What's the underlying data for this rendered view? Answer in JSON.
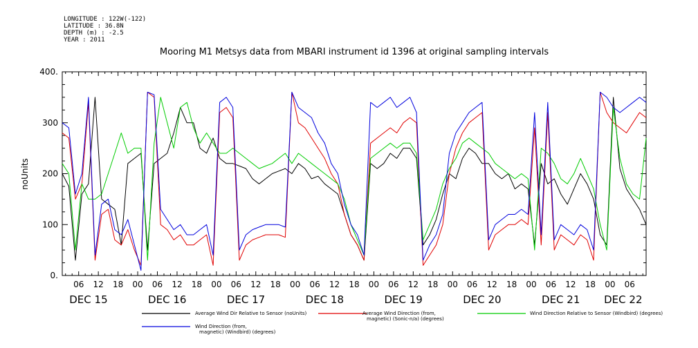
{
  "header": {
    "meta_lines": [
      "LONGITUDE : 122W(-122)",
      "LATITUDE : 36.8N",
      "DEPTH (m) : -2.5",
      "YEAR : 2011"
    ],
    "title": "Mooring M1 Metsys data from MBARI instrument id 1396 at original sampling intervals"
  },
  "chart_data": {
    "type": "line",
    "title": "Mooring M1 Metsys data from MBARI instrument id 1396 at original sampling intervals",
    "ylabel": "noUnits",
    "xlabel": "",
    "ylim": [
      0,
      400
    ],
    "y_ticks": [
      0,
      100,
      200,
      300,
      400
    ],
    "y_tick_labels": [
      "0.",
      "100",
      "200",
      "300",
      "400."
    ],
    "x_unit": "hours since Dec 14 2011 00:00",
    "xlim": [
      105.5,
      194.5
    ],
    "hour_ticks": [
      {
        "x": 108,
        "label": "06"
      },
      {
        "x": 111,
        "label": "12"
      },
      {
        "x": 114,
        "label": "18"
      },
      {
        "x": 117,
        "label": "00"
      },
      {
        "x": 120,
        "label": "06"
      },
      {
        "x": 123,
        "label": "12"
      },
      {
        "x": 126,
        "label": "18"
      },
      {
        "x": 129,
        "label": "00"
      },
      {
        "x": 132,
        "label": "06"
      },
      {
        "x": 135,
        "label": "12"
      },
      {
        "x": 138,
        "label": "18"
      },
      {
        "x": 141,
        "label": "00"
      },
      {
        "x": 144,
        "label": "06"
      },
      {
        "x": 147,
        "label": "12"
      },
      {
        "x": 150,
        "label": "18"
      },
      {
        "x": 153,
        "label": "00"
      },
      {
        "x": 156,
        "label": "06"
      },
      {
        "x": 159,
        "label": "12"
      },
      {
        "x": 162,
        "label": "18"
      },
      {
        "x": 165,
        "label": "00"
      },
      {
        "x": 168,
        "label": "06"
      },
      {
        "x": 171,
        "label": "12"
      },
      {
        "x": 174,
        "label": "18"
      },
      {
        "x": 177,
        "label": "00"
      },
      {
        "x": 180,
        "label": "06"
      },
      {
        "x": 183,
        "label": "12"
      },
      {
        "x": 186,
        "label": "18"
      },
      {
        "x": 189,
        "label": "00"
      },
      {
        "x": 192,
        "label": "06"
      }
    ],
    "day_labels": [
      {
        "x": 109.5,
        "label": "DEC 15"
      },
      {
        "x": 121.5,
        "label": "DEC 16"
      },
      {
        "x": 133.5,
        "label": "DEC 17"
      },
      {
        "x": 145.5,
        "label": "DEC 18"
      },
      {
        "x": 157.5,
        "label": "DEC 19"
      },
      {
        "x": 169.5,
        "label": "DEC 20"
      },
      {
        "x": 181.5,
        "label": "DEC 21"
      },
      {
        "x": 191,
        "label": "DEC 22"
      }
    ],
    "series": [
      {
        "name": "Average Wind Dir Relative to Sensor (noUnits)",
        "color": "#000000",
        "x": [
          105.5,
          106.5,
          107.5,
          108.5,
          109.5,
          110.5,
          111.5,
          112.5,
          113.5,
          114.5,
          115.5,
          116.5,
          117.5,
          118.5,
          119.5,
          120.5,
          121.5,
          122.5,
          123.5,
          124.5,
          125.5,
          126.5,
          127.5,
          128.5,
          129.5,
          130.5,
          131.5,
          132.5,
          133.5,
          134.5,
          135.5,
          136.5,
          137.5,
          138.5,
          139.5,
          140.5,
          141.5,
          142.5,
          143.5,
          144.5,
          145.5,
          146.5,
          147.5,
          148.5,
          149.5,
          150.5,
          151.5,
          152.5,
          153.5,
          154.5,
          155.5,
          156.5,
          157.5,
          158.5,
          159.5,
          160.5,
          161.5,
          162.5,
          163.5,
          164.5,
          165.5,
          166.5,
          167.5,
          168.5,
          169.5,
          170.5,
          171.5,
          172.5,
          173.5,
          174.5,
          175.5,
          176.5,
          177.5,
          178.5,
          179.5,
          180.5,
          181.5,
          182.5,
          183.5,
          184.5,
          185.5,
          186.5,
          187.5,
          188.5,
          189.5,
          190.5,
          191.5,
          192.5,
          193.5,
          194.5
        ],
        "values": [
          200,
          175,
          30,
          160,
          180,
          350,
          150,
          140,
          130,
          60,
          220,
          230,
          240,
          50,
          220,
          230,
          240,
          280,
          330,
          300,
          300,
          250,
          240,
          270,
          230,
          220,
          220,
          215,
          210,
          190,
          180,
          190,
          200,
          205,
          210,
          200,
          220,
          210,
          190,
          195,
          180,
          170,
          160,
          120,
          80,
          60,
          30,
          220,
          210,
          220,
          240,
          230,
          250,
          250,
          230,
          60,
          80,
          110,
          160,
          200,
          190,
          230,
          250,
          240,
          220,
          220,
          200,
          190,
          200,
          170,
          180,
          170,
          60,
          220,
          180,
          190,
          160,
          140,
          170,
          200,
          180,
          150,
          80,
          60,
          350,
          210,
          170,
          150,
          130,
          100
        ]
      },
      {
        "name": "Average Wind Direction (from, magnetic) (Sonic-n/a) (degrees)",
        "color": "#e00000",
        "x": [
          105.5,
          106.5,
          107.5,
          108.5,
          109.5,
          110.5,
          111.5,
          112.5,
          113.5,
          114.5,
          115.5,
          116.5,
          117.5,
          118.5,
          119.5,
          120.5,
          121.5,
          122.5,
          123.5,
          124.5,
          125.5,
          126.5,
          127.5,
          128.5,
          129.5,
          130.5,
          131.5,
          132.5,
          133.5,
          134.5,
          135.5,
          136.5,
          137.5,
          138.5,
          139.5,
          140.5,
          141.5,
          142.5,
          143.5,
          144.5,
          145.5,
          146.5,
          147.5,
          148.5,
          149.5,
          150.5,
          151.5,
          152.5,
          153.5,
          154.5,
          155.5,
          156.5,
          157.5,
          158.5,
          159.5,
          160.5,
          161.5,
          162.5,
          163.5,
          164.5,
          165.5,
          166.5,
          167.5,
          168.5,
          169.5,
          170.5,
          171.5,
          172.5,
          173.5,
          174.5,
          175.5,
          176.5,
          177.5,
          178.5,
          179.5,
          180.5,
          181.5,
          182.5,
          183.5,
          184.5,
          185.5,
          186.5,
          187.5,
          188.5,
          189.5,
          190.5,
          191.5,
          192.5,
          193.5,
          194.5
        ],
        "values": [
          280,
          270,
          150,
          180,
          340,
          30,
          120,
          130,
          70,
          60,
          90,
          50,
          20,
          360,
          350,
          100,
          90,
          70,
          80,
          60,
          60,
          70,
          80,
          20,
          320,
          330,
          310,
          30,
          60,
          70,
          75,
          80,
          80,
          80,
          75,
          360,
          300,
          290,
          270,
          250,
          230,
          200,
          180,
          120,
          80,
          60,
          30,
          260,
          270,
          280,
          290,
          280,
          300,
          310,
          300,
          20,
          40,
          60,
          100,
          200,
          250,
          280,
          300,
          310,
          320,
          50,
          80,
          90,
          100,
          100,
          110,
          100,
          290,
          60,
          320,
          50,
          80,
          70,
          60,
          80,
          70,
          30,
          360,
          320,
          300,
          290,
          280,
          300,
          320,
          310
        ]
      },
      {
        "name": "Wind Direction Relative to Sensor (Windbird) (degrees)",
        "color": "#00cc00",
        "x": [
          105.5,
          106.5,
          107.5,
          108.5,
          109.5,
          110.5,
          111.5,
          112.5,
          113.5,
          114.5,
          115.5,
          116.5,
          117.5,
          118.5,
          119.5,
          120.5,
          121.5,
          122.5,
          123.5,
          124.5,
          125.5,
          126.5,
          127.5,
          128.5,
          129.5,
          130.5,
          131.5,
          132.5,
          133.5,
          134.5,
          135.5,
          136.5,
          137.5,
          138.5,
          139.5,
          140.5,
          141.5,
          142.5,
          143.5,
          144.5,
          145.5,
          146.5,
          147.5,
          148.5,
          149.5,
          150.5,
          151.5,
          152.5,
          153.5,
          154.5,
          155.5,
          156.5,
          157.5,
          158.5,
          159.5,
          160.5,
          161.5,
          162.5,
          163.5,
          164.5,
          165.5,
          166.5,
          167.5,
          168.5,
          169.5,
          170.5,
          171.5,
          172.5,
          173.5,
          174.5,
          175.5,
          176.5,
          177.5,
          178.5,
          179.5,
          180.5,
          181.5,
          182.5,
          183.5,
          184.5,
          185.5,
          186.5,
          187.5,
          188.5,
          189.5,
          190.5,
          191.5,
          192.5,
          193.5,
          194.5
        ],
        "values": [
          220,
          200,
          50,
          180,
          150,
          150,
          160,
          200,
          240,
          280,
          240,
          250,
          250,
          30,
          260,
          350,
          300,
          250,
          330,
          340,
          290,
          260,
          280,
          260,
          240,
          240,
          250,
          240,
          230,
          220,
          210,
          215,
          220,
          230,
          240,
          220,
          240,
          230,
          220,
          210,
          200,
          190,
          180,
          150,
          100,
          70,
          40,
          230,
          240,
          250,
          260,
          250,
          260,
          260,
          240,
          70,
          100,
          130,
          180,
          210,
          230,
          260,
          270,
          260,
          250,
          240,
          220,
          210,
          200,
          190,
          200,
          190,
          50,
          250,
          240,
          220,
          190,
          180,
          200,
          230,
          200,
          170,
          100,
          50,
          330,
          230,
          180,
          160,
          150,
          270
        ]
      },
      {
        "name": "Wind Direction (from, magnetic) (Windbird) (degrees)",
        "color": "#0000dd",
        "x": [
          105.5,
          106.5,
          107.5,
          108.5,
          109.5,
          110.5,
          111.5,
          112.5,
          113.5,
          114.5,
          115.5,
          116.5,
          117.5,
          118.5,
          119.5,
          120.5,
          121.5,
          122.5,
          123.5,
          124.5,
          125.5,
          126.5,
          127.5,
          128.5,
          129.5,
          130.5,
          131.5,
          132.5,
          133.5,
          134.5,
          135.5,
          136.5,
          137.5,
          138.5,
          139.5,
          140.5,
          141.5,
          142.5,
          143.5,
          144.5,
          145.5,
          146.5,
          147.5,
          148.5,
          149.5,
          150.5,
          151.5,
          152.5,
          153.5,
          154.5,
          155.5,
          156.5,
          157.5,
          158.5,
          159.5,
          160.5,
          161.5,
          162.5,
          163.5,
          164.5,
          165.5,
          166.5,
          167.5,
          168.5,
          169.5,
          170.5,
          171.5,
          172.5,
          173.5,
          174.5,
          175.5,
          176.5,
          177.5,
          178.5,
          179.5,
          180.5,
          181.5,
          182.5,
          183.5,
          184.5,
          185.5,
          186.5,
          187.5,
          188.5,
          189.5,
          190.5,
          191.5,
          192.5,
          193.5,
          194.5
        ],
        "values": [
          300,
          290,
          160,
          200,
          350,
          40,
          140,
          150,
          90,
          80,
          110,
          60,
          10,
          360,
          355,
          130,
          110,
          90,
          100,
          80,
          80,
          90,
          100,
          40,
          340,
          350,
          330,
          50,
          80,
          90,
          95,
          100,
          100,
          100,
          95,
          360,
          330,
          320,
          310,
          280,
          260,
          220,
          200,
          140,
          100,
          80,
          40,
          340,
          330,
          340,
          350,
          330,
          340,
          350,
          320,
          30,
          60,
          80,
          120,
          240,
          280,
          300,
          320,
          330,
          340,
          70,
          100,
          110,
          120,
          120,
          130,
          120,
          320,
          80,
          340,
          70,
          100,
          90,
          80,
          100,
          90,
          50,
          360,
          350,
          330,
          320,
          330,
          340,
          350,
          340
        ]
      }
    ],
    "legend_placement": "bottom",
    "grid": false
  }
}
